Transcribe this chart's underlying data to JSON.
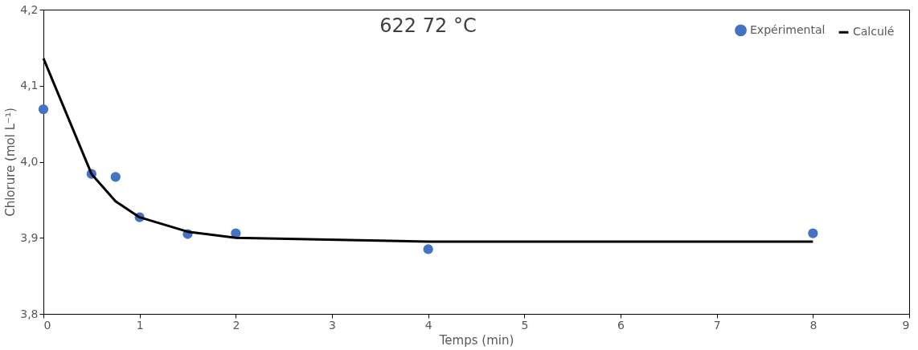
{
  "chart_data": {
    "type": "scatter",
    "title": "622 72 °C",
    "xlabel": "Temps (min)",
    "ylabel": "Chlorure (mol L⁻¹)",
    "series": [
      {
        "name": "Expérimental",
        "color": "#4472c4",
        "marker": "circle",
        "x": [
          0,
          0.5,
          0.75,
          1,
          1.5,
          2,
          4,
          8
        ],
        "values": [
          4.069,
          3.984,
          3.98,
          3.927,
          3.905,
          3.906,
          3.885,
          3.906
        ]
      },
      {
        "name": "Calculé",
        "type": "line",
        "color": "#000000",
        "marker": "none",
        "line_style": "solid",
        "x": [
          0,
          0.5,
          0.75,
          1,
          1.5,
          2,
          4,
          8
        ],
        "values": [
          4.136,
          3.984,
          3.948,
          3.927,
          3.908,
          3.9,
          3.895,
          3.895
        ]
      }
    ],
    "xlim": [
      0,
      9
    ],
    "xticks": [
      0,
      1,
      2,
      3,
      4,
      5,
      6,
      7,
      8,
      9
    ],
    "ylim": [
      3.8,
      4.2
    ],
    "yticks": [
      {
        "value": 3.8,
        "label": "3,8"
      },
      {
        "value": 3.9,
        "label": "3,9"
      },
      {
        "value": 4.0,
        "label": "4,0"
      },
      {
        "value": 4.1,
        "label": "4,1"
      },
      {
        "value": 4.2,
        "label": "4,2"
      }
    ],
    "grid": false,
    "legend": "top right"
  }
}
